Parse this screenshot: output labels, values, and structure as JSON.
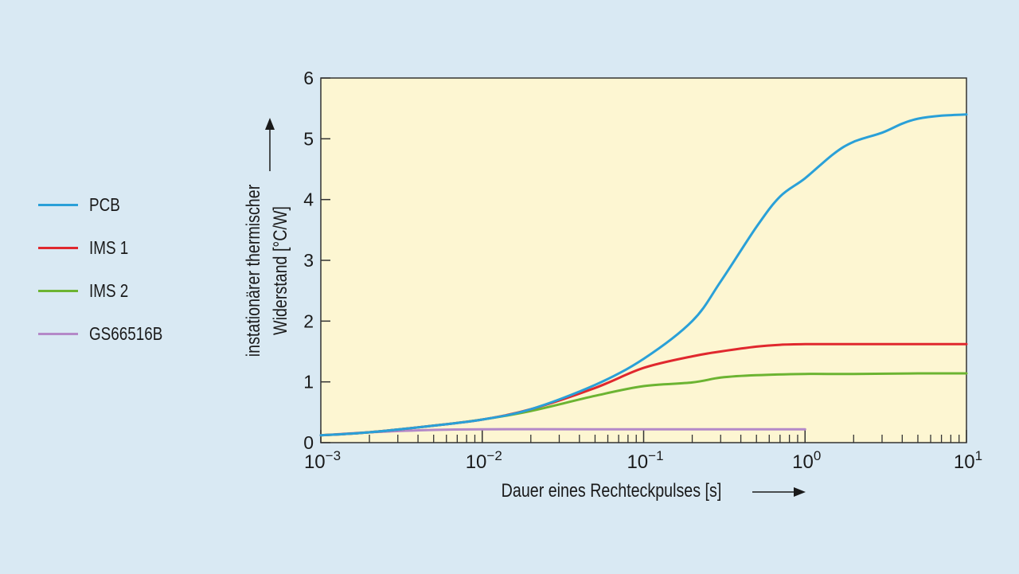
{
  "chart_data": {
    "type": "line",
    "xscale": "log",
    "xlim": [
      0.001,
      10
    ],
    "ylim": [
      0,
      6
    ],
    "grid": false,
    "legend_position": "left",
    "xlabel": "Dauer eines Rechteckpulses [s]",
    "ylabel_line1": "instationärer thermischer",
    "ylabel_line2": "Widerstand [°C/W]",
    "x_ticks": [
      {
        "base": "10",
        "exp": "−3",
        "value": 0.001
      },
      {
        "base": "10",
        "exp": "−2",
        "value": 0.01
      },
      {
        "base": "10",
        "exp": "−1",
        "value": 0.1
      },
      {
        "base": "10",
        "exp": "0",
        "value": 1
      },
      {
        "base": "10",
        "exp": "1",
        "value": 10
      }
    ],
    "y_ticks": [
      "0",
      "1",
      "2",
      "3",
      "4",
      "5",
      "6"
    ],
    "series": [
      {
        "name": "PCB",
        "color": "#2aa0d8",
        "x": [
          0.001,
          0.002,
          0.005,
          0.01,
          0.02,
          0.05,
          0.1,
          0.2,
          0.3,
          0.5,
          0.7,
          1,
          1.5,
          2,
          3,
          4,
          5,
          7,
          10
        ],
        "y": [
          0.12,
          0.17,
          0.28,
          0.38,
          0.55,
          0.95,
          1.38,
          2.0,
          2.65,
          3.55,
          4.05,
          4.35,
          4.75,
          4.95,
          5.1,
          5.25,
          5.33,
          5.38,
          5.4
        ]
      },
      {
        "name": "IMS 1",
        "color": "#e0282e",
        "x": [
          0.001,
          0.002,
          0.005,
          0.01,
          0.02,
          0.05,
          0.1,
          0.2,
          0.3,
          0.5,
          0.7,
          1,
          2,
          5,
          10
        ],
        "y": [
          0.12,
          0.17,
          0.28,
          0.38,
          0.55,
          0.9,
          1.23,
          1.42,
          1.5,
          1.58,
          1.61,
          1.62,
          1.62,
          1.62,
          1.62
        ]
      },
      {
        "name": "IMS 2",
        "color": "#6cb432",
        "x": [
          0.001,
          0.002,
          0.005,
          0.01,
          0.02,
          0.05,
          0.1,
          0.2,
          0.3,
          0.5,
          1,
          2,
          5,
          10
        ],
        "y": [
          0.12,
          0.17,
          0.28,
          0.38,
          0.52,
          0.77,
          0.93,
          0.99,
          1.07,
          1.11,
          1.13,
          1.13,
          1.14,
          1.14
        ]
      },
      {
        "name": "GS66516B",
        "color": "#b489c8",
        "x": [
          0.001,
          0.002,
          0.005,
          0.01,
          0.05,
          0.1,
          0.5,
          1
        ],
        "y": [
          0.12,
          0.17,
          0.21,
          0.22,
          0.22,
          0.22,
          0.22,
          0.22
        ]
      }
    ]
  }
}
